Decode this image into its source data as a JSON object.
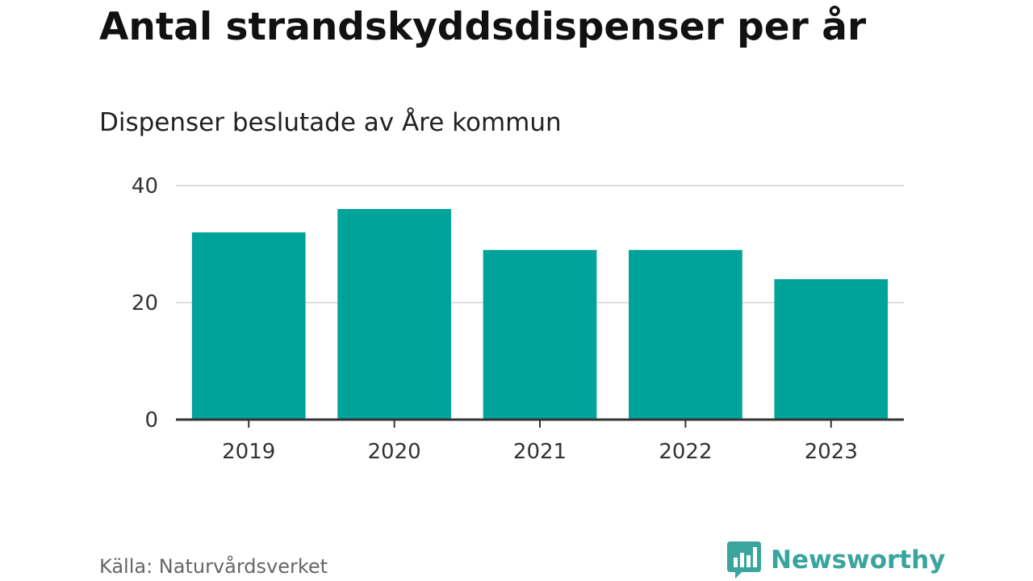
{
  "chart_data": {
    "type": "bar",
    "title": "Antal strandskyddsdispenser per år",
    "subtitle": "Dispenser beslutade av Åre kommun",
    "categories": [
      "2019",
      "2020",
      "2021",
      "2022",
      "2023"
    ],
    "values": [
      32,
      36,
      29,
      29,
      24
    ],
    "yticks": [
      0,
      20,
      40
    ],
    "ylim": [
      0,
      40
    ],
    "xlabel": "",
    "ylabel": "",
    "grid": true,
    "bar_color": "#00A39A"
  },
  "footer": {
    "source": "Källa: Naturvårdsverket",
    "brand": "Newsworthy"
  },
  "colors": {
    "bar": "#00A39A",
    "brand": "#3AA59C",
    "grid": "#DDDDDD",
    "axis": "#333333"
  },
  "icons": {
    "brand_logo": "bar-chart-speech-bubble-icon"
  }
}
